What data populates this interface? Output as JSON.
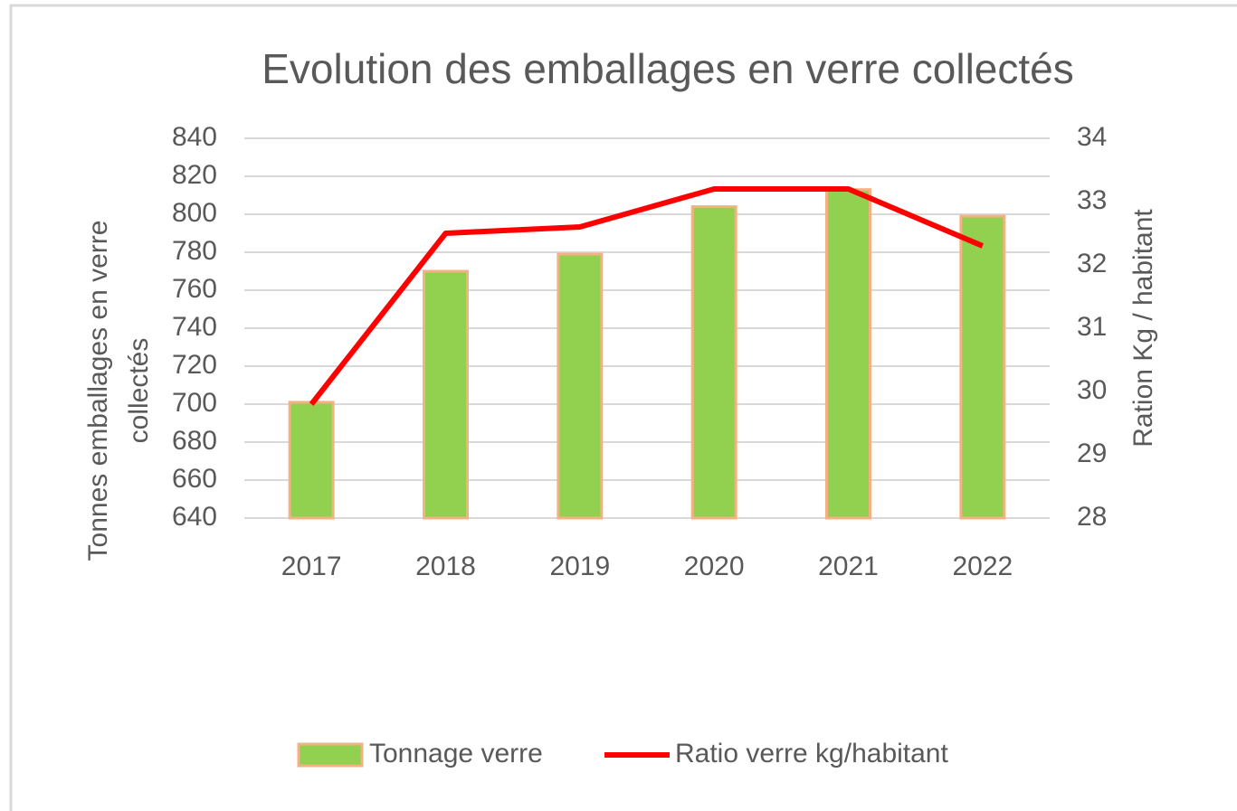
{
  "chart_data": {
    "type": "bar-line",
    "title": "Evolution des emballages en verre collectés",
    "ylabel": [
      "Tonnes  emballages en verre",
      "collectés"
    ],
    "y2label": "Ration Kg / habitant",
    "categories": [
      "2017",
      "2018",
      "2019",
      "2020",
      "2021",
      "2022"
    ],
    "series": [
      {
        "name": "Tonnage verre",
        "type": "bar",
        "color": "#92d050",
        "edgecolor": "#f4b183",
        "values": [
          701,
          770,
          779,
          804,
          813,
          799
        ]
      },
      {
        "name": "Ratio verre kg/habitant",
        "type": "line",
        "axis": "y2",
        "color": "#ff0000",
        "values": [
          29.8,
          32.5,
          32.6,
          33.2,
          33.2,
          32.3
        ]
      }
    ],
    "ylim": [
      640,
      840
    ],
    "yticks": [
      640,
      660,
      680,
      700,
      720,
      740,
      760,
      780,
      800,
      820,
      840
    ],
    "y2lim": [
      28,
      34
    ],
    "y2ticks": [
      28,
      29,
      30,
      31,
      32,
      33,
      34
    ],
    "grid": true,
    "legend": "bottom"
  }
}
